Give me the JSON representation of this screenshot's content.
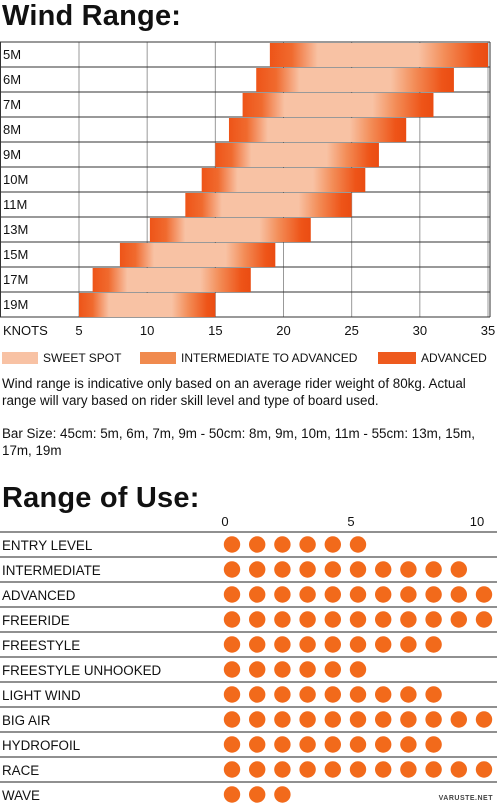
{
  "wind_range": {
    "title": "Wind Range:",
    "axis_label": "KNOTS",
    "legend": [
      {
        "label": "SWEET SPOT",
        "color": "#f8c2a4"
      },
      {
        "label": "INTERMEDIATE TO ADVANCED",
        "color": "#f08a4e"
      },
      {
        "label": "ADVANCED",
        "color": "#ee5a1e"
      }
    ],
    "note1": "Wind range is indicative only based on an average rider weight of 80kg. Actual range will vary based on rider skill level and type of board used.",
    "note2": "Bar Size: 45cm: 5m, 6m, 7m, 9m - 50cm: 8m, 9m, 10m, 11m - 55cm: 13m, 15m, 17m, 19m"
  },
  "range_of_use": {
    "title": "Range of Use:"
  },
  "watermark": "VARUSTE.NET",
  "chart_data": [
    {
      "type": "bar",
      "orientation": "horizontal",
      "title": "Wind Range:",
      "xlabel": "KNOTS",
      "xlim": [
        5,
        35
      ],
      "xticks": [
        5,
        10,
        15,
        20,
        25,
        30,
        35
      ],
      "grid": true,
      "categories": [
        "5M",
        "6M",
        "7M",
        "8M",
        "9M",
        "10M",
        "11M",
        "13M",
        "15M",
        "17M",
        "19M"
      ],
      "ranges": [
        {
          "size": "5M",
          "low": 19,
          "high": 35
        },
        {
          "size": "6M",
          "low": 18,
          "high": 32.5
        },
        {
          "size": "7M",
          "low": 17,
          "high": 31
        },
        {
          "size": "8M",
          "low": 16,
          "high": 29
        },
        {
          "size": "9M",
          "low": 15,
          "high": 27
        },
        {
          "size": "10M",
          "low": 14,
          "high": 26
        },
        {
          "size": "11M",
          "low": 12.8,
          "high": 25
        },
        {
          "size": "13M",
          "low": 10.2,
          "high": 22
        },
        {
          "size": "15M",
          "low": 8,
          "high": 19.4
        },
        {
          "size": "17M",
          "low": 6,
          "high": 17.6
        },
        {
          "size": "19M",
          "low": 5,
          "high": 15
        }
      ]
    },
    {
      "type": "bar",
      "orientation": "horizontal",
      "title": "Range of Use:",
      "xlim": [
        0,
        10
      ],
      "xticks": [
        0,
        5,
        10
      ],
      "categories": [
        "ENTRY LEVEL",
        "INTERMEDIATE",
        "ADVANCED",
        "FREERIDE",
        "FREESTYLE",
        "FREESTYLE UNHOOKED",
        "LIGHT WIND",
        "BIG AIR",
        "HYDROFOIL",
        "RACE",
        "WAVE"
      ],
      "values": [
        6,
        10,
        11,
        11,
        9,
        6,
        9,
        11,
        9,
        11,
        3
      ],
      "color": "#f26a1b"
    }
  ]
}
